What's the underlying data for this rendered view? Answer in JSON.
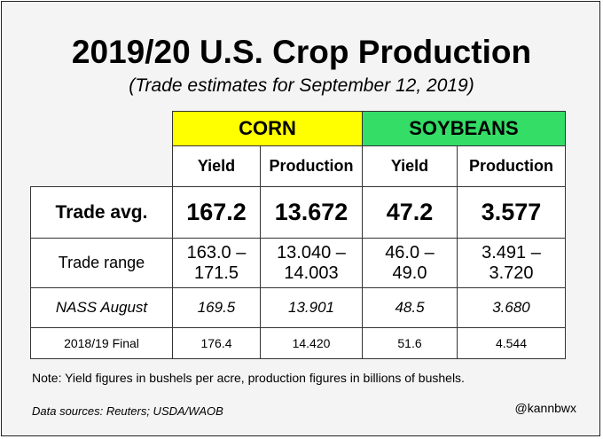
{
  "title": "2019/20 U.S. Crop Production",
  "subtitle": "(Trade estimates for September 12, 2019)",
  "table": {
    "crops": [
      "CORN",
      "SOYBEANS"
    ],
    "subheaders": [
      "Yield",
      "Production",
      "Yield",
      "Production"
    ],
    "rows": [
      {
        "label": "Trade avg.",
        "values": [
          "167.2",
          "13.672",
          "47.2",
          "3.577"
        ]
      },
      {
        "label": "Trade range",
        "values": [
          [
            "163.0 –",
            "171.5"
          ],
          [
            "13.040 –",
            "14.003"
          ],
          [
            "46.0 –",
            "49.0"
          ],
          [
            "3.491 –",
            "3.720"
          ]
        ]
      },
      {
        "label": "NASS August",
        "values": [
          "169.5",
          "13.901",
          "48.5",
          "3.680"
        ]
      },
      {
        "label": "2018/19 Final",
        "values": [
          "176.4",
          "14.420",
          "51.6",
          "4.544"
        ]
      }
    ]
  },
  "note": "Note: Yield figures in bushels per acre, production figures in billions of bushels.",
  "sources": "Data sources: Reuters; USDA/WAOB",
  "handle": "@kannbwx",
  "colors": {
    "corn_header": "#ffff00",
    "soy_header": "#33dd66"
  }
}
